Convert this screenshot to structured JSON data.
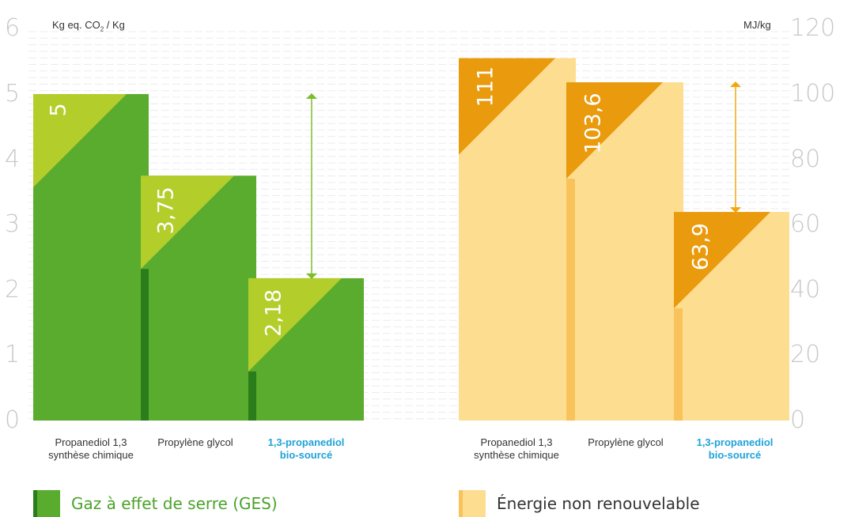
{
  "colors": {
    "ges_bar": "#5aac2f",
    "ges_dark": "#2a7d1a",
    "ges_triangle": "#b3cd2b",
    "ges_arrow": "#7cbd2a",
    "energy_bar": "#fdde90",
    "energy_dark": "#f9c25a",
    "energy_triangle": "#e99a0d",
    "energy_arrow": "#f1a60c",
    "highlight_text": "#1fa2d8",
    "ges_legend_text": "#4aa22a",
    "energy_legend_text": "#333333"
  },
  "chart_data": [
    {
      "type": "bar",
      "ylabel": "Kg eq. CO2 / Kg",
      "ylim": [
        0,
        6
      ],
      "yticks": [
        "0",
        "1",
        "2",
        "3",
        "4",
        "5",
        "6"
      ],
      "categories": [
        "Propanediol 1,3\nsynthèse chimique",
        "Propylène glycol",
        "1,3-propanediol\nbio-sourcé"
      ],
      "values": [
        5,
        3.75,
        2.18
      ],
      "value_labels": [
        "5",
        "3,75",
        "2,18"
      ],
      "highlight_category": 2,
      "legend": "Gaz à effet de serre (GES)"
    },
    {
      "type": "bar",
      "ylabel": "MJ/kg",
      "ylim": [
        0,
        120
      ],
      "yticks": [
        "0",
        "20",
        "40",
        "60",
        "80",
        "100",
        "120"
      ],
      "categories": [
        "Propanediol 1,3\nsynthèse chimique",
        "Propylène glycol",
        "1,3-propanediol\nbio-sourcé"
      ],
      "values": [
        111,
        103.6,
        63.9
      ],
      "value_labels": [
        "111",
        "103,6",
        "63,9"
      ],
      "highlight_category": 2,
      "legend": "Énergie non renouvelable"
    }
  ],
  "unit_left_main": "Kg eq. CO",
  "unit_left_sub": "2",
  "unit_left_tail": " / Kg",
  "unit_right": "MJ/kg"
}
